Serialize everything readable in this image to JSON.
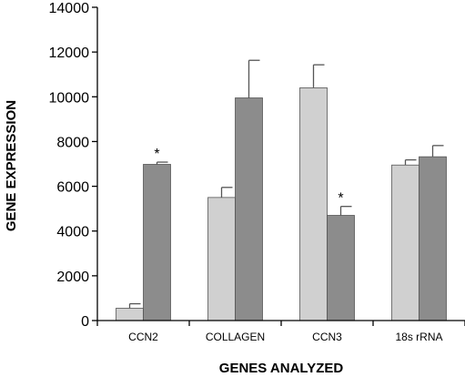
{
  "chart_data": {
    "type": "bar",
    "title": "",
    "xlabel": "GENES ANALYZED",
    "ylabel": "GENE EXPRESSION",
    "ylim": [
      0,
      14000
    ],
    "yticks": [
      0,
      2000,
      4000,
      6000,
      8000,
      10000,
      12000,
      14000
    ],
    "categories": [
      "CCN2",
      "COLLAGEN",
      "CCN3",
      "18s rRNA"
    ],
    "series": [
      {
        "color": "#d0d0d0",
        "values": [
          550,
          5500,
          10400,
          6950
        ],
        "errors": [
          200,
          450,
          1030,
          230
        ]
      },
      {
        "color": "#8c8c8c",
        "values": [
          6980,
          9950,
          4700,
          7320
        ],
        "errors": [
          100,
          1680,
          400,
          500
        ]
      }
    ],
    "annotations": [
      {
        "category": "CCN2",
        "series": 1,
        "text": "*"
      },
      {
        "category": "CCN3",
        "series": 1,
        "text": "*"
      }
    ],
    "legend": "none",
    "grid": false
  }
}
